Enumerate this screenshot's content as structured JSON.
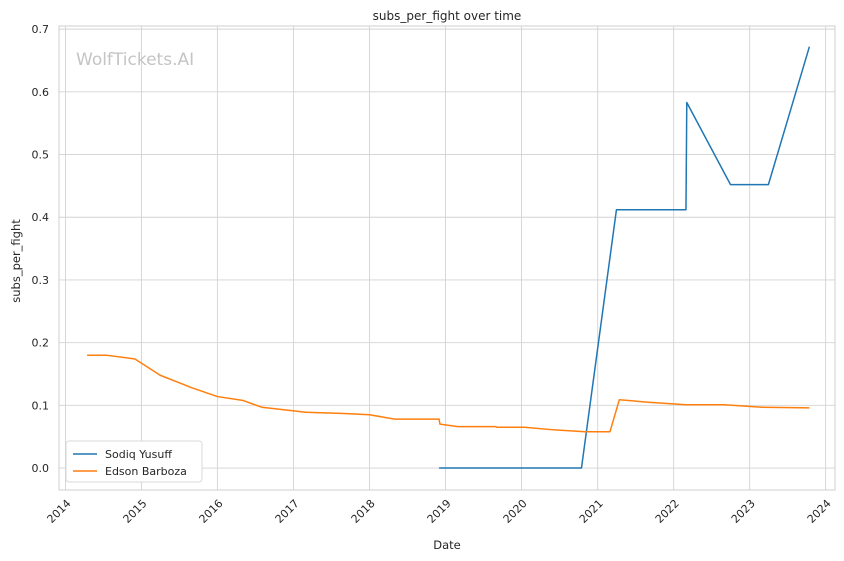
{
  "watermark": "WolfTickets.AI",
  "chart_data": {
    "type": "line",
    "title": "subs_per_fight over time",
    "xlabel": "Date",
    "ylabel": "subs_per_fight",
    "x_type": "date",
    "xlim": [
      "2013-12-01",
      "2024-02-15"
    ],
    "ylim": [
      -0.035,
      0.705
    ],
    "x_ticks": [
      "2014",
      "2015",
      "2016",
      "2017",
      "2018",
      "2019",
      "2020",
      "2021",
      "2022",
      "2023",
      "2024"
    ],
    "y_ticks": [
      0.0,
      0.1,
      0.2,
      0.3,
      0.4,
      0.5,
      0.6,
      0.7
    ],
    "y_tick_labels": [
      "0.0",
      "0.1",
      "0.2",
      "0.3",
      "0.4",
      "0.5",
      "0.6",
      "0.7"
    ],
    "grid": true,
    "legend_position": "lower-left",
    "series": [
      {
        "name": "Sodiq Yusuff",
        "color": "#1f77b4",
        "points": [
          [
            "2018-12-01",
            0.0
          ],
          [
            "2020-10-15",
            0.0
          ],
          [
            "2021-04-01",
            0.412
          ],
          [
            "2022-03-01",
            0.412
          ],
          [
            "2022-03-05",
            0.583
          ],
          [
            "2022-10-01",
            0.452
          ],
          [
            "2023-04-01",
            0.452
          ],
          [
            "2023-10-15",
            0.672
          ]
        ]
      },
      {
        "name": "Edson Barboza",
        "color": "#ff7f0e",
        "points": [
          [
            "2014-04-15",
            0.18
          ],
          [
            "2014-07-15",
            0.18
          ],
          [
            "2014-12-01",
            0.174
          ],
          [
            "2015-04-01",
            0.148
          ],
          [
            "2015-09-01",
            0.128
          ],
          [
            "2016-01-01",
            0.114
          ],
          [
            "2016-05-01",
            0.108
          ],
          [
            "2016-08-01",
            0.097
          ],
          [
            "2017-03-01",
            0.089
          ],
          [
            "2017-09-01",
            0.087
          ],
          [
            "2018-01-01",
            0.085
          ],
          [
            "2018-05-01",
            0.078
          ],
          [
            "2018-12-01",
            0.078
          ],
          [
            "2018-12-05",
            0.07
          ],
          [
            "2019-03-01",
            0.066
          ],
          [
            "2019-09-01",
            0.066
          ],
          [
            "2019-09-05",
            0.065
          ],
          [
            "2020-01-15",
            0.065
          ],
          [
            "2020-06-01",
            0.061
          ],
          [
            "2020-11-01",
            0.058
          ],
          [
            "2021-03-01",
            0.058
          ],
          [
            "2021-04-15",
            0.109
          ],
          [
            "2021-09-01",
            0.105
          ],
          [
            "2022-01-15",
            0.102
          ],
          [
            "2022-03-01",
            0.101
          ],
          [
            "2022-09-01",
            0.101
          ],
          [
            "2023-03-01",
            0.097
          ],
          [
            "2023-10-15",
            0.096
          ]
        ]
      }
    ]
  }
}
